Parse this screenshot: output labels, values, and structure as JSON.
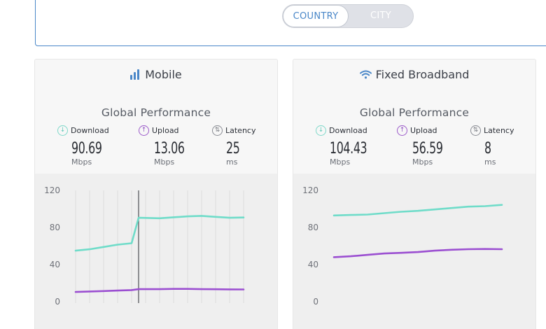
{
  "toggle": {
    "country_label": "COUNTRY",
    "city_label": "CITY",
    "selected": "COUNTRY"
  },
  "colors": {
    "download": "#6fdcc9",
    "upload": "#9b4fd1",
    "latency": "#8a8d94",
    "accent": "#4a87c8"
  },
  "cards": {
    "mobile": {
      "title": "Mobile",
      "icon": "signal-bars-icon",
      "perf_title": "Global Performance",
      "download": {
        "label": "Download",
        "value": "90.69",
        "unit": "Mbps"
      },
      "upload": {
        "label": "Upload",
        "value": "13.06",
        "unit": "Mbps"
      },
      "latency": {
        "label": "Latency",
        "value": "25",
        "unit": "ms"
      }
    },
    "fixed": {
      "title": "Fixed Broadband",
      "icon": "wifi-icon",
      "perf_title": "Global Performance",
      "download": {
        "label": "Download",
        "value": "104.43",
        "unit": "Mbps"
      },
      "upload": {
        "label": "Upload",
        "value": "56.59",
        "unit": "Mbps"
      },
      "latency": {
        "label": "Latency",
        "value": "8",
        "unit": "ms"
      }
    }
  },
  "chart_data": [
    {
      "type": "line",
      "yticks": [
        "120",
        "80",
        "40",
        "0"
      ],
      "ylim": [
        0,
        120
      ],
      "grid": "vertical",
      "hover_marker_index": 4,
      "series": [
        {
          "values": [
            55,
            56.5,
            59,
            61.5,
            63,
            90.5,
            90,
            91,
            92,
            92.5,
            91.5,
            90.5,
            90.8
          ]
        },
        {
          "values": [
            10.5,
            11,
            11.5,
            12,
            12.5,
            13.5,
            13.5,
            13.8,
            13.8,
            13.5,
            13.4,
            13.3,
            13.2
          ]
        }
      ]
    },
    {
      "type": "line",
      "yticks": [
        "120",
        "80",
        "40",
        "0"
      ],
      "ylim": [
        0,
        120
      ],
      "grid": "none",
      "series": [
        {
          "values": [
            93,
            93.5,
            94,
            95.5,
            97,
            98,
            99.5,
            101,
            102.5,
            103,
            104.4
          ]
        },
        {
          "values": [
            48,
            49,
            50.5,
            52,
            52.7,
            53.5,
            55,
            56,
            56.6,
            56.8,
            56.6
          ]
        }
      ]
    }
  ]
}
